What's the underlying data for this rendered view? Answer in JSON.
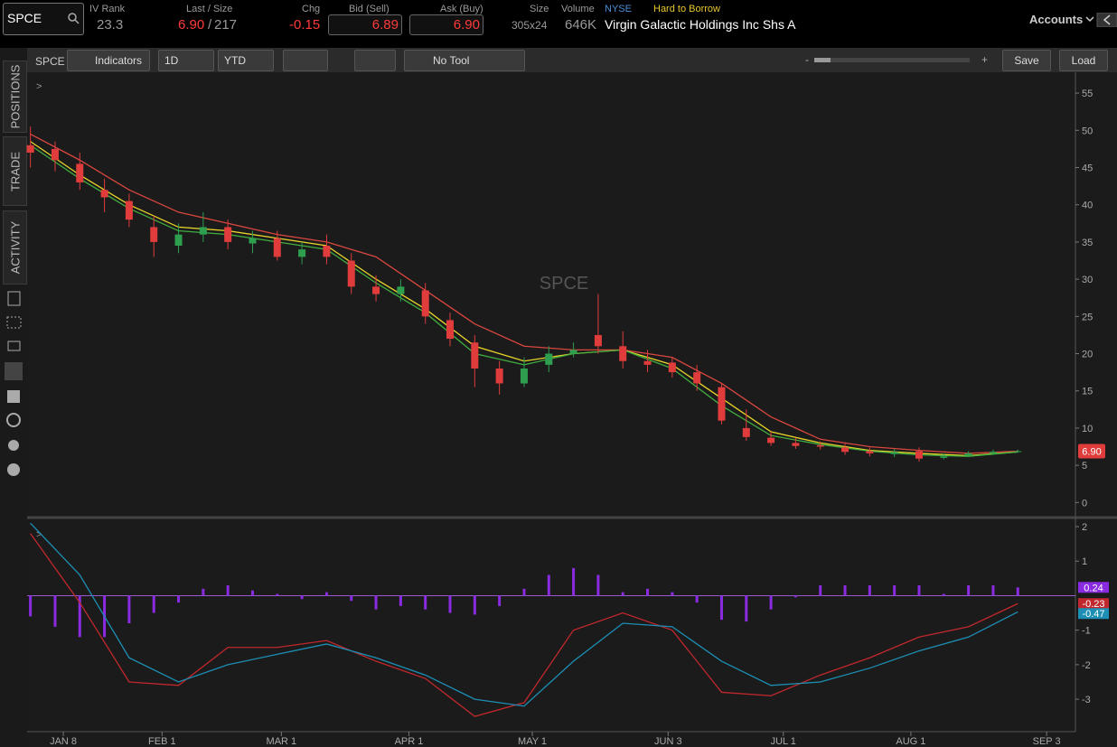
{
  "header": {
    "symbol": "SPCE",
    "iv_rank_label": "IV Rank",
    "iv_rank": "23.3",
    "last_size_label": "Last / Size",
    "last": "6.90",
    "size_sep": "/",
    "last_size": "217",
    "chg_label": "Chg",
    "chg": "-0.15",
    "bid_label": "Bid (Sell)",
    "bid": "6.89",
    "ask_label": "Ask (Buy)",
    "ask": "6.90",
    "size_label": "Size",
    "size": "305x24",
    "volume_label": "Volume",
    "volume": "646K",
    "exchange": "NYSE",
    "borrow": "Hard to Borrow",
    "company": "Virgin Galactic Holdings Inc Shs A",
    "accounts": "Accounts"
  },
  "toolbar": {
    "symbol": "SPCE",
    "indicators": "Indicators",
    "aggregation": "1D",
    "range": "YTD",
    "tool": "No Tool",
    "zoom_out": "-",
    "zoom_in": "+",
    "save": "Save",
    "load": "Load",
    "collapse": ">"
  },
  "sidebar": {
    "tabs": [
      "POSITIONS",
      "TRADE",
      "ACTIVITY"
    ]
  },
  "chart_data": [
    {
      "type": "candlestick",
      "watermark": "SPCE",
      "up_color": "#2e9e4f",
      "down_color": "#e03c3c",
      "x": [
        0,
        6,
        12,
        18,
        24,
        30,
        36,
        42,
        48,
        54,
        60,
        66,
        72,
        78,
        84,
        90,
        96,
        102,
        108,
        114,
        120,
        126,
        132,
        138,
        144,
        150,
        156,
        162,
        168,
        174,
        180,
        186,
        192,
        198,
        204,
        210,
        216,
        222,
        228,
        234,
        240
      ],
      "open": [
        48,
        47.5,
        45.5,
        42,
        40.5,
        37,
        34.5,
        36,
        37,
        34.8,
        35.5,
        33,
        34.5,
        32.5,
        29,
        28,
        28.5,
        24.5,
        21.5,
        18,
        16,
        18.5,
        20,
        22.5,
        21,
        19,
        18.8,
        17.5,
        15.5,
        10,
        8.7,
        8,
        7.7,
        7.4,
        6.9,
        6.5,
        6.9,
        6,
        6.3,
        6.6,
        6.8
      ],
      "high": [
        50.5,
        48.5,
        47,
        43.5,
        41.5,
        38.5,
        37.5,
        39,
        38,
        36.5,
        36.5,
        35,
        36,
        33.5,
        30.5,
        30,
        29.5,
        25.5,
        22.5,
        19,
        19.5,
        21,
        21.5,
        28,
        23,
        20.5,
        19.5,
        18.5,
        16,
        12.5,
        9.5,
        8.7,
        8.2,
        7.9,
        7.4,
        7.2,
        7.4,
        6.6,
        6.9,
        7.1,
        7.1
      ],
      "low": [
        45,
        44.5,
        42,
        39,
        37,
        33,
        33.5,
        35,
        34,
        33.5,
        32.5,
        32,
        32,
        28,
        27,
        27,
        24,
        21,
        15.5,
        14.5,
        15.5,
        17.5,
        19.5,
        20,
        18,
        17.5,
        16.8,
        15,
        10.5,
        8.3,
        7.6,
        7.2,
        7.1,
        6.4,
        6.2,
        6.1,
        5.5,
        5.8,
        6.1,
        6.5,
        6.7
      ],
      "close": [
        47,
        46,
        43,
        41,
        38,
        35,
        36,
        37,
        35,
        35.5,
        33,
        34,
        33,
        29,
        28,
        29,
        25,
        22,
        18,
        16,
        18,
        20,
        20.5,
        21,
        19,
        18.5,
        17.5,
        16,
        11,
        8.8,
        8,
        7.6,
        7.5,
        6.8,
        6.6,
        6.8,
        5.9,
        6.2,
        6.6,
        6.8,
        6.9
      ],
      "studies": [
        {
          "color": "#d9473f",
          "x": [
            0,
            12,
            24,
            36,
            48,
            60,
            72,
            84,
            96,
            108,
            120,
            132,
            144,
            156,
            168,
            180,
            192,
            204,
            216,
            228,
            240
          ],
          "values": [
            49.5,
            46,
            42,
            39,
            37.5,
            36,
            35,
            33,
            28.5,
            24,
            21,
            20.5,
            20.5,
            19.5,
            16,
            11.5,
            8.5,
            7.5,
            7,
            6.6,
            6.9
          ]
        },
        {
          "color": "#e8d52a",
          "x": [
            0,
            12,
            24,
            36,
            48,
            60,
            72,
            84,
            96,
            108,
            120,
            132,
            144,
            156,
            168,
            180,
            192,
            204,
            216,
            228,
            240
          ],
          "values": [
            48.5,
            44,
            40,
            37,
            36.5,
            35.5,
            34.5,
            30,
            26,
            21,
            19,
            20,
            20.5,
            18.5,
            14,
            9.5,
            8,
            7,
            6.6,
            6.3,
            6.8
          ]
        },
        {
          "color": "#3fae3f",
          "x": [
            0,
            12,
            24,
            36,
            48,
            60,
            72,
            84,
            96,
            108,
            120,
            132,
            144,
            156,
            168,
            180,
            192,
            204,
            216,
            228,
            240
          ],
          "values": [
            48,
            43.5,
            39.5,
            36.5,
            36,
            35,
            34,
            29.5,
            25.5,
            20,
            18.5,
            20,
            20.5,
            18,
            13,
            9,
            7.8,
            6.9,
            6.4,
            6.2,
            6.8
          ]
        }
      ],
      "xlim": [
        -0.8,
        254
      ],
      "ylim": [
        -1.9,
        57.8
      ],
      "yticks": [
        0,
        5,
        10,
        15,
        20,
        25,
        30,
        35,
        40,
        45,
        50,
        55
      ],
      "xticks": [
        {
          "value": 8,
          "label": "JAN 8"
        },
        {
          "value": 32,
          "label": "FEB 1"
        },
        {
          "value": 61,
          "label": "MAR 1"
        },
        {
          "value": 92,
          "label": "APR 1"
        },
        {
          "value": 122,
          "label": "MAY 1"
        },
        {
          "value": 155,
          "label": "JUN 3"
        },
        {
          "value": 183,
          "label": "JUL 1"
        },
        {
          "value": 214,
          "label": "AUG 1"
        },
        {
          "value": 247,
          "label": "SEP 3"
        }
      ],
      "grid": false
    },
    {
      "type": "macd",
      "xlim": [
        -0.8,
        254
      ],
      "ylim": [
        -3.94,
        2.21
      ],
      "yticks": [
        -3,
        -2,
        -1,
        1,
        2
      ],
      "histogram": {
        "color": "#8a2be2",
        "x": [
          0,
          6,
          12,
          18,
          24,
          30,
          36,
          42,
          48,
          54,
          60,
          66,
          72,
          78,
          84,
          90,
          96,
          102,
          108,
          114,
          120,
          126,
          132,
          138,
          144,
          150,
          156,
          162,
          168,
          174,
          180,
          186,
          192,
          198,
          204,
          210,
          216,
          222,
          228,
          234,
          240
        ],
        "values": [
          -0.6,
          -0.9,
          -1.2,
          -1.2,
          -0.8,
          -0.5,
          -0.2,
          0.2,
          0.3,
          0.15,
          0.05,
          -0.1,
          0.1,
          -0.15,
          -0.4,
          -0.3,
          -0.4,
          -0.5,
          -0.55,
          -0.3,
          0.2,
          0.6,
          0.8,
          0.6,
          0.1,
          0.2,
          0.1,
          -0.2,
          -0.7,
          -0.75,
          -0.4,
          -0.05,
          0.3,
          0.3,
          0.3,
          0.3,
          0.3,
          0.05,
          0.3,
          0.3,
          0.24
        ]
      },
      "series": [
        {
          "color": "#c0282d",
          "x": [
            0,
            12,
            24,
            36,
            48,
            60,
            72,
            84,
            96,
            108,
            120,
            132,
            144,
            156,
            168,
            180,
            192,
            204,
            216,
            228,
            240
          ],
          "values": [
            1.8,
            -0.2,
            -2.5,
            -2.6,
            -1.5,
            -1.5,
            -1.3,
            -1.9,
            -2.4,
            -3.5,
            -3.1,
            -1,
            -0.5,
            -1,
            -2.8,
            -2.9,
            -2.3,
            -1.8,
            -1.2,
            -0.9,
            -0.23
          ]
        },
        {
          "color": "#1d8fb5",
          "x": [
            0,
            12,
            24,
            36,
            48,
            60,
            72,
            84,
            96,
            108,
            120,
            132,
            144,
            156,
            168,
            180,
            192,
            204,
            216,
            228,
            240
          ],
          "values": [
            2.1,
            0.6,
            -1.8,
            -2.5,
            -2,
            -1.7,
            -1.4,
            -1.8,
            -2.3,
            -3,
            -3.2,
            -1.9,
            -0.8,
            -0.9,
            -1.9,
            -2.6,
            -2.5,
            -2.1,
            -1.6,
            -1.2,
            -0.47
          ]
        }
      ]
    }
  ]
}
